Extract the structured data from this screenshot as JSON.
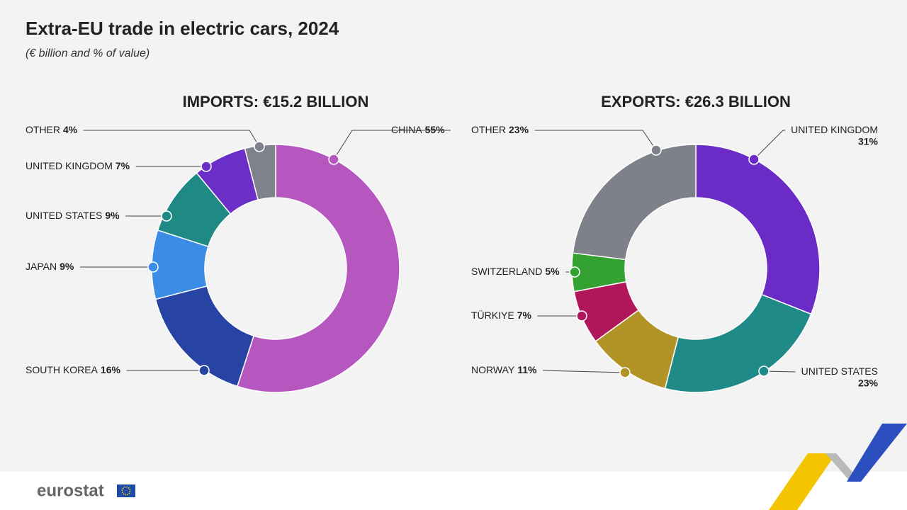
{
  "header": {
    "title": "Extra-EU trade in electric cars, 2024",
    "subtitle": "(€ billion and % of value)"
  },
  "footer": {
    "logo": "eurostat"
  },
  "chart_data": [
    {
      "type": "pie",
      "title": "IMPORTS: €15.2 BILLION",
      "categories": [
        "CHINA",
        "SOUTH KOREA",
        "JAPAN",
        "UNITED STATES",
        "UNITED KINGDOM",
        "OTHER"
      ],
      "values": [
        55,
        16,
        9,
        9,
        7,
        4
      ],
      "value_labels": [
        "55%",
        "16%",
        "9%",
        "9%",
        "7%",
        "4%"
      ],
      "colors": [
        "#b657c0",
        "#2744a4",
        "#3a8ce6",
        "#1f8a83",
        "#6b2ec6",
        "#7f828a"
      ]
    },
    {
      "type": "pie",
      "title": "EXPORTS: €26.3 BILLION",
      "categories": [
        "UNITED KINGDOM",
        "UNITED STATES",
        "NORWAY",
        "TÜRKIYE",
        "SWITZERLAND",
        "OTHER"
      ],
      "values": [
        31,
        23,
        11,
        7,
        5,
        23
      ],
      "value_labels": [
        "31%",
        "23%",
        "11%",
        "7%",
        "5%",
        "23%"
      ],
      "colors": [
        "#6a2bc7",
        "#1f8a88",
        "#b29426",
        "#b0175a",
        "#33a233",
        "#7e8189"
      ]
    }
  ]
}
